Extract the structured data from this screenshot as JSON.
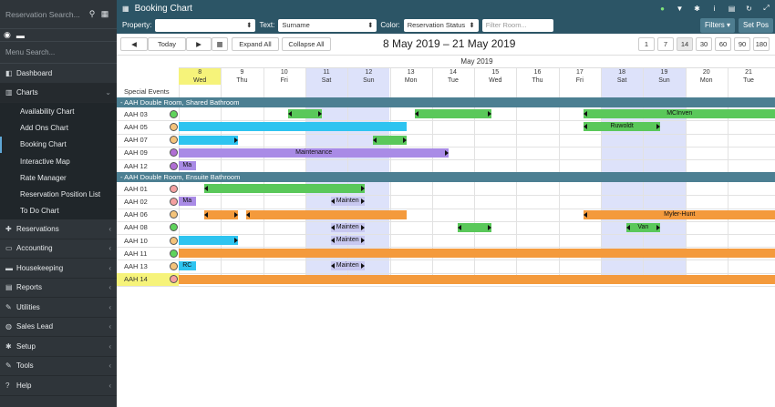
{
  "sidebar": {
    "search_placeholder": "Reservation Search...",
    "menu_search": "Menu Search...",
    "items": [
      {
        "label": "Dashboard",
        "icon": "dashboard-icon"
      },
      {
        "label": "Charts",
        "icon": "chart-icon"
      },
      {
        "label": "Reservations",
        "icon": "plus-icon"
      },
      {
        "label": "Accounting",
        "icon": "money-icon"
      },
      {
        "label": "Housekeeping",
        "icon": "bed-icon"
      },
      {
        "label": "Reports",
        "icon": "report-icon"
      },
      {
        "label": "Utilities",
        "icon": "wrench-icon"
      },
      {
        "label": "Sales Lead",
        "icon": "users-icon"
      },
      {
        "label": "Setup",
        "icon": "gear-icon"
      },
      {
        "label": "Tools",
        "icon": "wrench-icon"
      },
      {
        "label": "Help",
        "icon": "help-icon"
      }
    ],
    "chart_sub": [
      "Availability Chart",
      "Add Ons Chart",
      "Booking Chart",
      "Interactive Map",
      "Rate Manager",
      "Reservation Position List",
      "To Do Chart"
    ]
  },
  "topbar": {
    "title": "Booking Chart"
  },
  "filters": {
    "property_label": "Property:",
    "property_value": "",
    "text_label": "Text:",
    "text_value": "Surname",
    "color_label": "Color:",
    "color_value": "Reservation Status",
    "room_placeholder": "Filter Room...",
    "filters_btn": "Filters",
    "setpos_btn": "Set Pos"
  },
  "toolbar": {
    "prev": "◀",
    "today": "Today",
    "next": "▶",
    "expand": "Expand All",
    "collapse": "Collapse All",
    "range": "8 May 2019 – 21 May 2019",
    "zoom": [
      "1",
      "7",
      "14",
      "30",
      "60",
      "90",
      "180"
    ]
  },
  "chart": {
    "month": "May 2019",
    "days": [
      {
        "d": "8",
        "w": "Wed",
        "today": true
      },
      {
        "d": "9",
        "w": "Thu"
      },
      {
        "d": "10",
        "w": "Fri"
      },
      {
        "d": "11",
        "w": "Sat",
        "we": true
      },
      {
        "d": "12",
        "w": "Sun",
        "we": true
      },
      {
        "d": "13",
        "w": "Mon"
      },
      {
        "d": "14",
        "w": "Tue"
      },
      {
        "d": "15",
        "w": "Wed"
      },
      {
        "d": "16",
        "w": "Thu"
      },
      {
        "d": "17",
        "w": "Fri"
      },
      {
        "d": "18",
        "w": "Sat",
        "we": true
      },
      {
        "d": "19",
        "w": "Sun",
        "we": true
      },
      {
        "d": "20",
        "w": "Mon"
      },
      {
        "d": "21",
        "w": "Tue"
      }
    ],
    "special_events": "Special Events",
    "sections": [
      {
        "title": "- AAH Double Room, Shared Bathroom",
        "rooms": [
          {
            "name": "AAH 03",
            "status": "#5fd35b",
            "bars": [
              {
                "s": 2.6,
                "e": 3.4,
                "c": "#5ac85a",
                "t": "",
                "al": true,
                "ar": true
              },
              {
                "s": 5.6,
                "e": 7.4,
                "c": "#5ac85a",
                "t": "",
                "al": true,
                "ar": true
              },
              {
                "s": 9.6,
                "e": 14.5,
                "c": "#5ac85a",
                "t": "MCInven",
                "al": true
              }
            ]
          },
          {
            "name": "AAH 05",
            "status": "#f4c37a",
            "bars": [
              {
                "s": 0,
                "e": 5.4,
                "c": "#2ec4f0",
                "t": ""
              },
              {
                "s": 9.6,
                "e": 11.4,
                "c": "#5ac85a",
                "t": "Ruwoldt",
                "al": true,
                "ar": true
              }
            ]
          },
          {
            "name": "AAH 07",
            "status": "#f4c37a",
            "bars": [
              {
                "s": 0,
                "e": 1.4,
                "c": "#2ec4f0",
                "t": "",
                "ar": true
              },
              {
                "s": 4.6,
                "e": 5.4,
                "c": "#5ac85a",
                "t": "",
                "al": true,
                "ar": true
              }
            ]
          },
          {
            "name": "AAH 09",
            "status": "#b06ed4",
            "bars": [
              {
                "s": 0,
                "e": 6.4,
                "c": "#a98be6",
                "t": "Maintenance",
                "ar": true
              }
            ]
          },
          {
            "name": "AAH 12",
            "status": "#b06ed4",
            "bars": [
              {
                "s": 0,
                "e": 0.4,
                "c": "#a98be6",
                "t": "Ma"
              }
            ]
          }
        ]
      },
      {
        "title": "- AAH Double Room, Ensuite Bathroom",
        "rooms": [
          {
            "name": "AAH 01",
            "status": "#f4a0a0",
            "bars": [
              {
                "s": 0.6,
                "e": 4.4,
                "c": "#5ac85a",
                "t": "",
                "al": true,
                "ar": true
              }
            ]
          },
          {
            "name": "AAH 02",
            "status": "#f4a0a0",
            "bars": [
              {
                "s": 0,
                "e": 0.4,
                "c": "#a98be6",
                "t": "Ma"
              },
              {
                "s": 3.6,
                "e": 4.4,
                "c": "#c8c8f0",
                "t": "Mainten",
                "al": true,
                "ar": true
              }
            ]
          },
          {
            "name": "AAH 06",
            "status": "#f4c37a",
            "bars": [
              {
                "s": 0.6,
                "e": 1.4,
                "c": "#f49a3c",
                "t": "",
                "al": true,
                "ar": true
              },
              {
                "s": 1.6,
                "e": 5.4,
                "c": "#f49a3c",
                "t": "",
                "al": true
              },
              {
                "s": 9.6,
                "e": 14.5,
                "c": "#f49a3c",
                "t": "Myler-Hunt",
                "al": true
              }
            ]
          },
          {
            "name": "AAH 08",
            "status": "#5fd35b",
            "bars": [
              {
                "s": 3.6,
                "e": 4.4,
                "c": "#c8c8f0",
                "t": "Mainten",
                "al": true,
                "ar": true
              },
              {
                "s": 6.6,
                "e": 7.4,
                "c": "#5ac85a",
                "t": "",
                "al": true,
                "ar": true
              },
              {
                "s": 10.6,
                "e": 11.4,
                "c": "#5ac85a",
                "t": "Van",
                "al": true,
                "ar": true
              }
            ]
          },
          {
            "name": "AAH 10",
            "status": "#f4c37a",
            "bars": [
              {
                "s": 0,
                "e": 1.4,
                "c": "#2ec4f0",
                "t": "",
                "ar": true
              },
              {
                "s": 3.6,
                "e": 4.4,
                "c": "#c8c8f0",
                "t": "Mainten",
                "al": true,
                "ar": true
              }
            ]
          },
          {
            "name": "AAH 11",
            "status": "#5fd35b",
            "bars": [
              {
                "s": 0,
                "e": 14.5,
                "c": "#f49a3c",
                "t": ""
              }
            ]
          },
          {
            "name": "AAH 13",
            "status": "#f4c37a",
            "bars": [
              {
                "s": 0,
                "e": 0.4,
                "c": "#2ec4f0",
                "t": "RC"
              },
              {
                "s": 3.6,
                "e": 4.4,
                "c": "#c8c8f0",
                "t": "Mainten",
                "al": true,
                "ar": true
              }
            ]
          },
          {
            "name": "AAH 14",
            "status": "#f4a0a0",
            "highlight": true,
            "bars": [
              {
                "s": 0,
                "e": 14.5,
                "c": "#f49a3c",
                "t": ""
              }
            ]
          }
        ]
      }
    ]
  }
}
